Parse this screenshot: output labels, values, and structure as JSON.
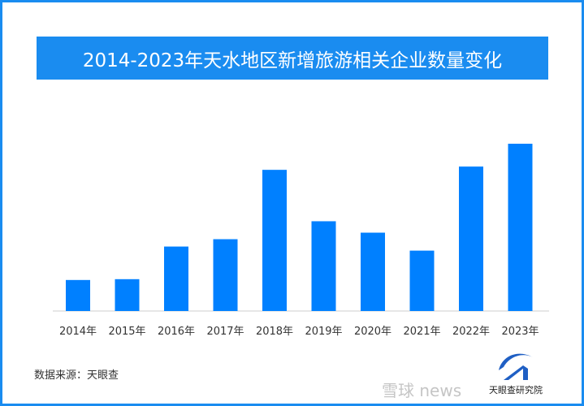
{
  "chart_data": {
    "type": "bar",
    "title": "2014-2023年天水地区新增旅游相关企业数量变化",
    "categories": [
      "2014年",
      "2015年",
      "2016年",
      "2017年",
      "2018年",
      "2019年",
      "2020年",
      "2021年",
      "2022年",
      "2023年"
    ],
    "values": [
      38,
      39,
      79,
      88,
      173,
      110,
      96,
      74,
      177,
      205
    ],
    "xlabel": "",
    "ylabel": "",
    "ylim": [
      0,
      205
    ],
    "grid": false,
    "bar_color": "#0080ff"
  },
  "source": "数据来源：天眼查",
  "logo_text": "天眼查研究院",
  "watermark": "雪球 news",
  "colors": {
    "frame": "#1a8cf0",
    "banner": "#1a8cf0"
  }
}
